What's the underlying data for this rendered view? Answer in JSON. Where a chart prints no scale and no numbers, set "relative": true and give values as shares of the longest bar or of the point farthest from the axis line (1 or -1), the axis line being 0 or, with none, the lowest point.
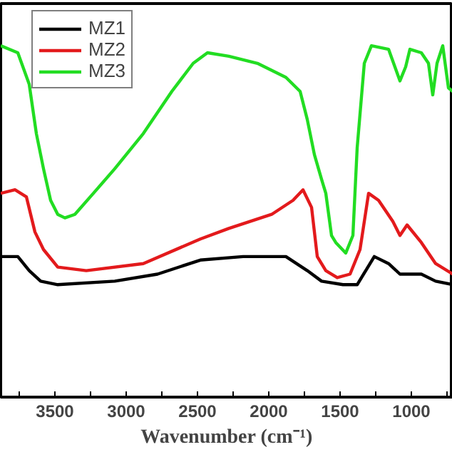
{
  "chart_data": {
    "type": "line",
    "relative": true,
    "xlabel": "Wavenumber (cm⁻¹)",
    "xlim": [
      3880,
      710
    ],
    "xticks": [
      {
        "value": 3750,
        "label": null
      },
      3500,
      {
        "value": 3250,
        "label": null
      },
      3000,
      {
        "value": 2750,
        "label": null
      },
      2500,
      {
        "value": 2250,
        "label": null
      },
      2000,
      {
        "value": 1750,
        "label": null
      },
      1500,
      {
        "value": 1250,
        "label": null
      },
      1000,
      {
        "value": 750,
        "label": null
      }
    ],
    "legend": "top left",
    "grid": false,
    "tick_labels": "x",
    "line_style": "solid",
    "marker": "none",
    "series": [
      {
        "name": "MZ1",
        "color": "#000000",
        "x": [
          3880,
          3760,
          3680,
          3600,
          3480,
          3080,
          2780,
          2480,
          2180,
          1880,
          1730,
          1630,
          1480,
          1380,
          1320,
          1260,
          1160,
          1080,
          1030,
          930,
          830,
          710
        ],
        "values": [
          0.4,
          0.4,
          0.36,
          0.33,
          0.32,
          0.33,
          0.35,
          0.39,
          0.4,
          0.4,
          0.36,
          0.33,
          0.32,
          0.32,
          0.36,
          0.4,
          0.38,
          0.35,
          0.35,
          0.35,
          0.33,
          0.32
        ]
      },
      {
        "name": "MZ2",
        "color": "#e31a1c",
        "x": [
          3880,
          3780,
          3700,
          3640,
          3580,
          3480,
          3280,
          2880,
          2480,
          2280,
          1980,
          1830,
          1760,
          1700,
          1660,
          1600,
          1520,
          1430,
          1360,
          1300,
          1230,
          1130,
          1080,
          1030,
          930,
          830,
          710
        ],
        "values": [
          0.58,
          0.59,
          0.57,
          0.47,
          0.42,
          0.37,
          0.36,
          0.38,
          0.45,
          0.48,
          0.52,
          0.56,
          0.59,
          0.54,
          0.4,
          0.36,
          0.34,
          0.35,
          0.42,
          0.58,
          0.56,
          0.5,
          0.46,
          0.49,
          0.44,
          0.38,
          0.35
        ]
      },
      {
        "name": "MZ3",
        "color": "#22dd22",
        "x": [
          3880,
          3760,
          3680,
          3630,
          3580,
          3530,
          3480,
          3430,
          3360,
          3230,
          3080,
          2880,
          2680,
          2530,
          2430,
          2280,
          2080,
          1880,
          1780,
          1730,
          1680,
          1630,
          1600,
          1560,
          1530,
          1460,
          1410,
          1380,
          1330,
          1280,
          1160,
          1080,
          1040,
          1010,
          930,
          880,
          850,
          820,
          780,
          740,
          710
        ],
        "values": [
          1.0,
          0.98,
          0.89,
          0.75,
          0.65,
          0.56,
          0.52,
          0.51,
          0.52,
          0.58,
          0.65,
          0.75,
          0.87,
          0.95,
          0.98,
          0.97,
          0.95,
          0.91,
          0.87,
          0.79,
          0.69,
          0.62,
          0.58,
          0.46,
          0.44,
          0.41,
          0.46,
          0.71,
          0.95,
          1.0,
          0.99,
          0.9,
          0.94,
          0.99,
          0.98,
          0.95,
          0.86,
          0.95,
          1.0,
          0.88,
          0.87
        ]
      }
    ]
  }
}
